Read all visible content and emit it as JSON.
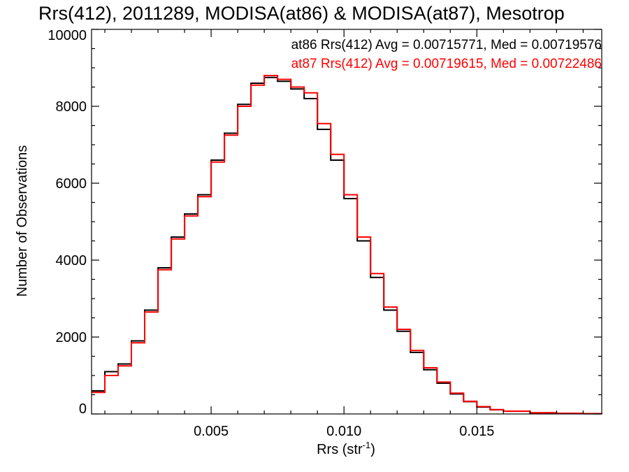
{
  "chart_data": {
    "type": "line",
    "title": "Rrs(412), 2011289, MODISA(at86) & MODISA(at87), Mesotrop",
    "xlabel": "Rrs (str",
    "xlabel_superscript": "-1",
    "xlabel_suffix": ")",
    "ylabel": "Number of Observations",
    "xlim": [
      0.0005,
      0.0197
    ],
    "ylim": [
      0,
      10000
    ],
    "x_ticks": [
      0.005,
      0.01,
      0.015
    ],
    "x_tick_labels": [
      "0.005",
      "0.010",
      "0.015"
    ],
    "y_ticks": [
      0,
      2000,
      4000,
      6000,
      8000,
      10000
    ],
    "y_tick_labels": [
      "0",
      "2000",
      "4000",
      "6000",
      "8000",
      "10000"
    ],
    "grid": false,
    "legend_position": "top-right",
    "x": [
      0.0005,
      0.001,
      0.0015,
      0.002,
      0.0025,
      0.003,
      0.0035,
      0.004,
      0.0045,
      0.005,
      0.0055,
      0.006,
      0.0065,
      0.007,
      0.0075,
      0.008,
      0.0085,
      0.009,
      0.0095,
      0.01,
      0.0105,
      0.011,
      0.0115,
      0.012,
      0.0125,
      0.013,
      0.0135,
      0.014,
      0.0145,
      0.015,
      0.0155,
      0.016,
      0.017,
      0.018,
      0.019,
      0.0197
    ],
    "series": [
      {
        "name": "at86",
        "color": "#000000",
        "values": [
          600,
          1100,
          1300,
          1900,
          2700,
          3800,
          4600,
          5200,
          5700,
          6600,
          7300,
          8050,
          8600,
          8750,
          8650,
          8450,
          8200,
          7400,
          6600,
          5600,
          4500,
          3550,
          2700,
          2150,
          1600,
          1150,
          800,
          520,
          320,
          180,
          110,
          70,
          30,
          15,
          8,
          5
        ]
      },
      {
        "name": "at87",
        "color": "#ff0000",
        "values": [
          560,
          1000,
          1250,
          1850,
          2650,
          3750,
          4550,
          5150,
          5650,
          6550,
          7250,
          8000,
          8550,
          8800,
          8700,
          8500,
          8350,
          7550,
          6750,
          5700,
          4600,
          3650,
          2780,
          2200,
          1650,
          1200,
          830,
          540,
          330,
          190,
          115,
          72,
          32,
          16,
          9,
          5
        ]
      }
    ],
    "annotations": [
      {
        "series": "at86",
        "text": "at86 Rrs(412) Avg = 0.00715771, Med = 0.00719576",
        "color": "#000000"
      },
      {
        "series": "at87",
        "text": "at87 Rrs(412) Avg = 0.00719615, Med = 0.00722486",
        "color": "#ff0000"
      }
    ]
  }
}
